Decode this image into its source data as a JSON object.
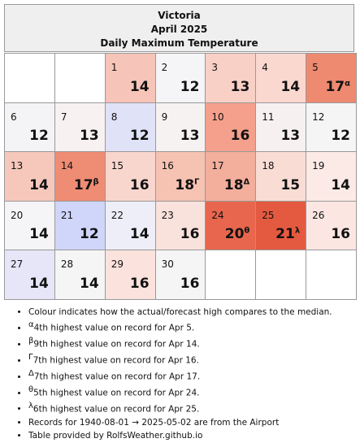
{
  "header": {
    "location": "Victoria",
    "month": "April 2025",
    "title": "Daily Maximum Temperature"
  },
  "weeks": [
    [
      null,
      null,
      {
        "day": 1,
        "temp": 14,
        "color": "#f6c4b8"
      },
      {
        "day": 2,
        "temp": 12,
        "color": "#f5f4f6"
      },
      {
        "day": 3,
        "temp": 13,
        "color": "#f8d0c6"
      },
      {
        "day": 4,
        "temp": 14,
        "color": "#fad8d0"
      },
      {
        "day": 5,
        "temp": 17,
        "note": "α",
        "color": "#ee8a70"
      }
    ],
    [
      {
        "day": 6,
        "temp": 12,
        "color": "#f4f4f6"
      },
      {
        "day": 7,
        "temp": 13,
        "color": "#f7f1f1"
      },
      {
        "day": 8,
        "temp": 12,
        "color": "#e0e2f8"
      },
      {
        "day": 9,
        "temp": 13,
        "color": "#f7f2f2"
      },
      {
        "day": 10,
        "temp": 16,
        "color": "#f4a08c"
      },
      {
        "day": 11,
        "temp": 13,
        "color": "#f7f0f0"
      },
      {
        "day": 12,
        "temp": 12,
        "color": "#f5f5f5"
      }
    ],
    [
      {
        "day": 13,
        "temp": 14,
        "color": "#f6c8bc"
      },
      {
        "day": 14,
        "temp": 17,
        "note": "β",
        "color": "#ef8c74"
      },
      {
        "day": 15,
        "temp": 16,
        "color": "#f8d6ce"
      },
      {
        "day": 16,
        "temp": 18,
        "note": "Γ",
        "color": "#f6c2b2"
      },
      {
        "day": 17,
        "temp": 18,
        "note": "Δ",
        "color": "#f3ae9c"
      },
      {
        "day": 18,
        "temp": 15,
        "color": "#f9ddd5"
      },
      {
        "day": 19,
        "temp": 14,
        "color": "#fbeae6"
      }
    ],
    [
      {
        "day": 20,
        "temp": 14,
        "color": "#f5f5f8"
      },
      {
        "day": 21,
        "temp": 12,
        "color": "#d0d5fa"
      },
      {
        "day": 22,
        "temp": 14,
        "color": "#eeeef8"
      },
      {
        "day": 23,
        "temp": 16,
        "color": "#fae2dc"
      },
      {
        "day": 24,
        "temp": 20,
        "note": "θ",
        "color": "#e8664e"
      },
      {
        "day": 25,
        "temp": 21,
        "note": "λ",
        "color": "#e45a40"
      },
      {
        "day": 26,
        "temp": 16,
        "color": "#fbe6e2"
      }
    ],
    [
      {
        "day": 27,
        "temp": 14,
        "color": "#e6e6f8"
      },
      {
        "day": 28,
        "temp": 14,
        "color": "#f5f5f5"
      },
      {
        "day": 29,
        "temp": 16,
        "color": "#fbe2dc"
      },
      {
        "day": 30,
        "temp": 16,
        "color": "#f5f5f5"
      },
      null,
      null,
      null
    ]
  ],
  "notes": [
    {
      "text": "Colour indicates how the actual/forecast high compares to the median."
    },
    {
      "mark": "α",
      "text": "4th highest value on record for Apr 5."
    },
    {
      "mark": "β",
      "text": "9th highest value on record for Apr 14."
    },
    {
      "mark": "Γ",
      "text": "7th highest value on record for Apr 16."
    },
    {
      "mark": "Δ",
      "text": "7th highest value on record for Apr 17."
    },
    {
      "mark": "θ",
      "text": "5th highest value on record for Apr 24."
    },
    {
      "mark": "λ",
      "text": "6th highest value on record for Apr 25."
    },
    {
      "text": "Records for 1940-08-01 → 2025-05-02 are from the Airport"
    },
    {
      "text": "Table provided by RolfsWeather.github.io"
    }
  ]
}
